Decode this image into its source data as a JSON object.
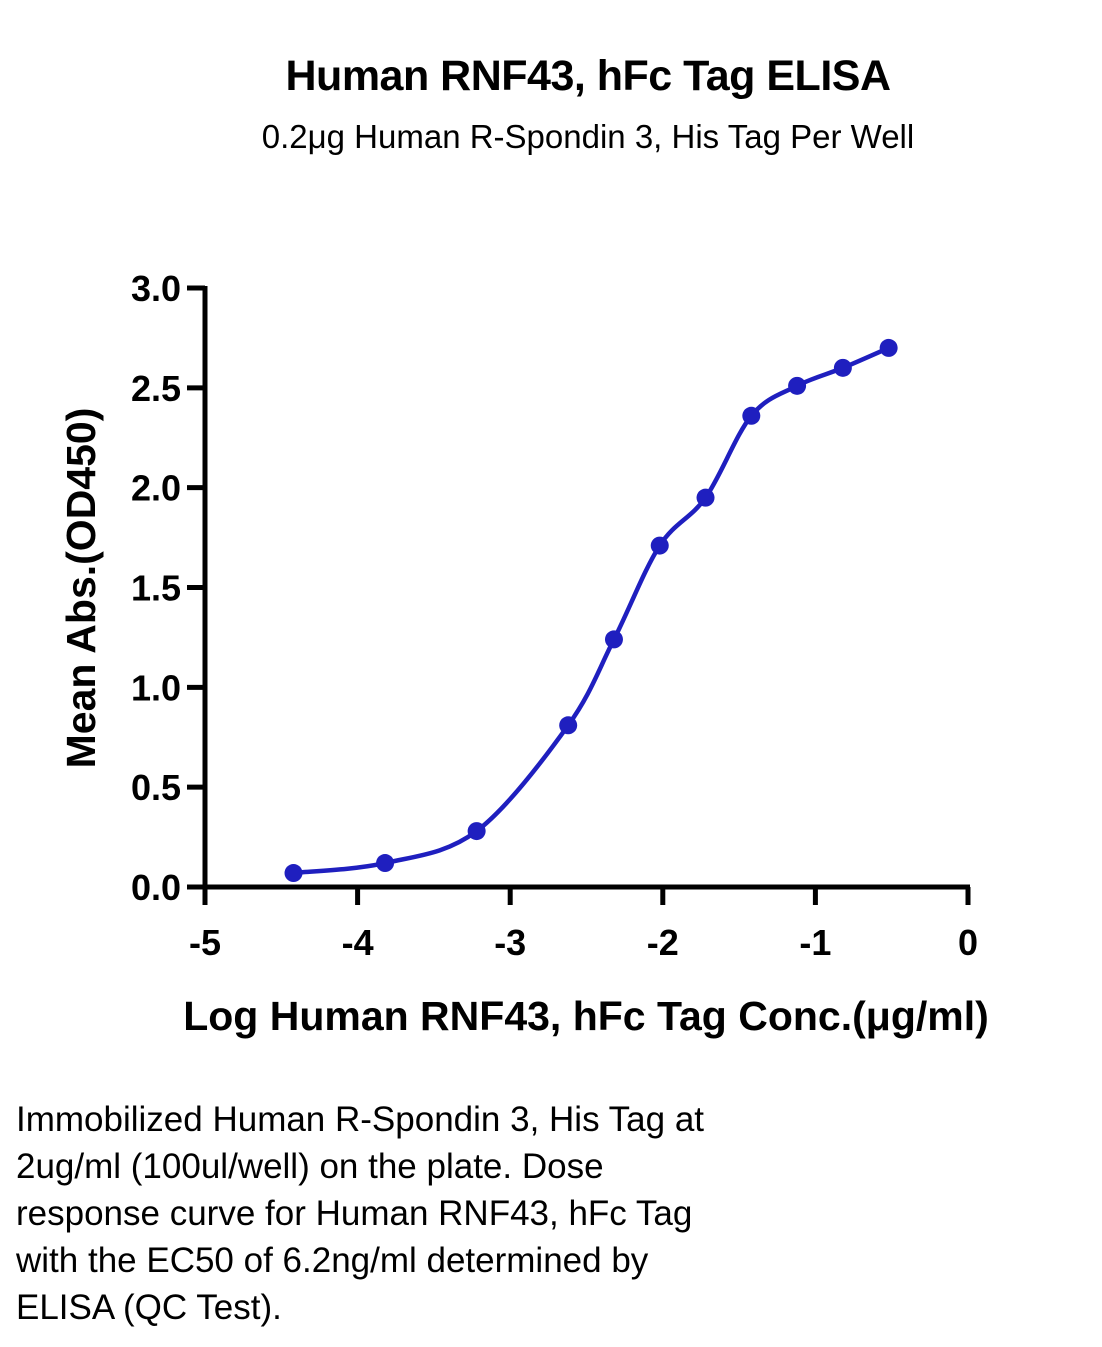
{
  "chart_data": {
    "type": "scatter",
    "title": "Human RNF43, hFc Tag ELISA",
    "subtitle": "0.2μg Human R-Spondin 3, His Tag Per Well",
    "xlabel": "Log Human RNF43, hFc Tag Conc.(μg/ml)",
    "ylabel": "Mean Abs.(OD450)",
    "xlim": [
      -5,
      0
    ],
    "ylim": [
      0,
      3.0
    ],
    "x_ticks": [
      "-5",
      "-4",
      "-3",
      "-2",
      "-1",
      "0"
    ],
    "y_ticks": [
      "0.0",
      "0.5",
      "1.0",
      "1.5",
      "2.0",
      "2.5",
      "3.0"
    ],
    "grid": false,
    "color": "#1f1fbf",
    "series": [
      {
        "x": [
          -4.42,
          -3.82,
          -3.22,
          -2.62,
          -2.32,
          -2.02,
          -1.72,
          -1.42,
          -1.12,
          -0.82,
          -0.52
        ],
        "y": [
          0.07,
          0.12,
          0.28,
          0.81,
          1.24,
          1.71,
          1.95,
          2.36,
          2.51,
          2.6,
          2.7
        ],
        "fit_curve": "sigmoidal"
      }
    ]
  },
  "caption": {
    "lines": [
      "Immobilized Human R-Spondin 3, His Tag at",
      "2ug/ml (100ul/well) on the plate. Dose",
      "response curve for Human RNF43, hFc Tag",
      "with the EC50 of 6.2ng/ml determined by",
      "ELISA (QC Test)."
    ]
  }
}
